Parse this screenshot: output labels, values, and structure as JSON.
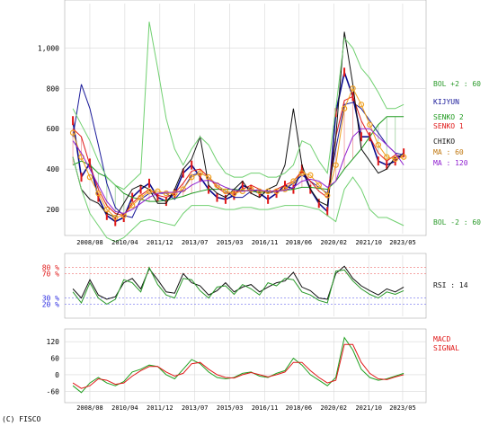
{
  "copyright": "(C) FISCO",
  "chart_data": [
    {
      "type": "line",
      "panel": "price",
      "x_tick_labels": [
        "2008/08",
        "2010/04",
        "2011/12",
        "2013/07",
        "2015/03",
        "2016/11",
        "2018/06",
        "2020/02",
        "2021/10",
        "2023/05"
      ],
      "y_tick_labels": [
        "200",
        "400",
        "600",
        "800",
        "1,000"
      ],
      "ylim": [
        80,
        1220
      ],
      "grid": true,
      "x": [
        2007.8,
        2008.2,
        2008.6,
        2009.0,
        2009.4,
        2009.8,
        2010.2,
        2010.6,
        2011.0,
        2011.4,
        2011.8,
        2012.2,
        2012.6,
        2013.0,
        2013.4,
        2013.8,
        2014.2,
        2014.6,
        2015.0,
        2015.4,
        2015.8,
        2016.2,
        2016.6,
        2017.0,
        2017.4,
        2017.8,
        2018.2,
        2018.6,
        2019.0,
        2019.4,
        2019.8,
        2020.2,
        2020.6,
        2021.0,
        2021.4,
        2021.8,
        2022.2,
        2022.6,
        2023.0,
        2023.4
      ],
      "series": [
        {
          "name": "",
          "role": "price",
          "color": "#0a0a8c",
          "values": [
            640,
            360,
            430,
            260,
            170,
            140,
            160,
            260,
            300,
            330,
            260,
            240,
            280,
            380,
            420,
            360,
            300,
            260,
            250,
            270,
            320,
            300,
            280,
            250,
            280,
            320,
            300,
            400,
            300,
            230,
            190,
            680,
            880,
            760,
            560,
            560,
            440,
            420,
            440,
            480
          ]
        },
        {
          "name": "KIJYUN",
          "color": "#1a1a9a",
          "values": [
            560,
            820,
            700,
            520,
            330,
            210,
            170,
            160,
            250,
            280,
            280,
            280,
            250,
            300,
            370,
            380,
            360,
            320,
            290,
            260,
            260,
            290,
            300,
            280,
            290,
            300,
            330,
            370,
            340,
            310,
            280,
            500,
            720,
            730,
            700,
            640,
            580,
            520,
            480,
            470
          ]
        },
        {
          "name": "SENKO 2",
          "color": "#1f9a1f",
          "values": [
            420,
            440,
            420,
            380,
            360,
            320,
            280,
            260,
            250,
            240,
            240,
            245,
            255,
            265,
            280,
            290,
            300,
            300,
            300,
            300,
            295,
            290,
            285,
            285,
            290,
            295,
            300,
            310,
            310,
            305,
            300,
            340,
            400,
            450,
            500,
            560,
            620,
            660,
            660,
            660
          ]
        },
        {
          "name": "SENKO 1",
          "color": "#e01818",
          "values": [
            600,
            560,
            420,
            300,
            220,
            180,
            170,
            230,
            270,
            300,
            270,
            260,
            280,
            330,
            390,
            400,
            360,
            310,
            280,
            280,
            300,
            320,
            300,
            280,
            300,
            320,
            340,
            390,
            340,
            290,
            260,
            560,
            740,
            760,
            640,
            560,
            480,
            440,
            470,
            460
          ]
        },
        {
          "name": "CHIKO",
          "color": "#111111",
          "values": [
            460,
            300,
            250,
            230,
            180,
            160,
            230,
            300,
            320,
            300,
            230,
            230,
            300,
            400,
            450,
            560,
            320,
            280,
            260,
            300,
            340,
            280,
            260,
            300,
            320,
            420,
            700,
            420,
            300,
            240,
            220,
            560,
            1080,
            820,
            500,
            440,
            380,
            400,
            460,
            470
          ]
        },
        {
          "name": "MA : 60",
          "color": "#f0a020",
          "values": [
            580,
            460,
            360,
            280,
            200,
            160,
            170,
            220,
            260,
            290,
            290,
            280,
            280,
            300,
            360,
            380,
            360,
            320,
            290,
            280,
            290,
            300,
            290,
            290,
            290,
            300,
            340,
            380,
            370,
            320,
            270,
            420,
            700,
            800,
            720,
            620,
            520,
            460,
            450,
            460
          ]
        },
        {
          "name": "MA : 120",
          "color": "#9020d0",
          "values": [
            540,
            480,
            400,
            320,
            240,
            190,
            180,
            200,
            230,
            260,
            280,
            285,
            285,
            290,
            320,
            340,
            345,
            330,
            310,
            295,
            290,
            295,
            295,
            290,
            290,
            295,
            310,
            340,
            350,
            340,
            310,
            340,
            460,
            560,
            600,
            600,
            560,
            520,
            480,
            420
          ]
        },
        {
          "name": "BOL +2 : 60",
          "color": "#70d070",
          "values": [
            700,
            620,
            540,
            440,
            360,
            320,
            300,
            340,
            380,
            1130,
            900,
            650,
            500,
            420,
            500,
            560,
            520,
            440,
            380,
            360,
            360,
            380,
            380,
            360,
            360,
            380,
            420,
            540,
            520,
            440,
            380,
            700,
            1050,
            1000,
            900,
            850,
            780,
            700,
            700,
            720
          ]
        },
        {
          "name": "BOL -2 : 60",
          "color": "#70d070",
          "values": [
            460,
            300,
            180,
            120,
            60,
            40,
            60,
            100,
            140,
            150,
            140,
            130,
            120,
            180,
            220,
            220,
            220,
            210,
            200,
            200,
            210,
            210,
            200,
            200,
            210,
            220,
            220,
            220,
            210,
            200,
            170,
            140,
            300,
            360,
            300,
            200,
            160,
            160,
            140,
            120
          ]
        }
      ],
      "ichimoku_cloud": {
        "upper": "SENKO 1",
        "lower": "SENKO 2"
      }
    },
    {
      "type": "line",
      "panel": "rsi",
      "title": "RSI : 14",
      "y_tick_labels": [
        "80 %",
        "70 %",
        "30 %",
        "20 %"
      ],
      "ylim": [
        0,
        100
      ],
      "reference_lines": [
        80,
        70,
        30,
        20
      ],
      "x": [
        2007.8,
        2008.2,
        2008.6,
        2009.0,
        2009.4,
        2009.8,
        2010.2,
        2010.6,
        2011.0,
        2011.4,
        2011.8,
        2012.2,
        2012.6,
        2013.0,
        2013.4,
        2013.8,
        2014.2,
        2014.6,
        2015.0,
        2015.4,
        2015.8,
        2016.2,
        2016.6,
        2017.0,
        2017.4,
        2017.8,
        2018.2,
        2018.6,
        2019.0,
        2019.4,
        2019.8,
        2020.2,
        2020.6,
        2021.0,
        2021.4,
        2021.8,
        2022.2,
        2022.6,
        2023.0,
        2023.4
      ],
      "series": [
        {
          "name": "RSI",
          "color": "#111111",
          "values": [
            45,
            30,
            60,
            35,
            28,
            32,
            55,
            62,
            45,
            78,
            60,
            40,
            38,
            70,
            55,
            50,
            35,
            42,
            55,
            40,
            48,
            52,
            40,
            48,
            55,
            58,
            72,
            48,
            42,
            30,
            28,
            70,
            82,
            62,
            50,
            42,
            35,
            45,
            40,
            48
          ]
        },
        {
          "name": "RSI (14)",
          "color": "#2a9a2a",
          "values": [
            40,
            22,
            55,
            30,
            20,
            28,
            60,
            55,
            40,
            80,
            52,
            35,
            30,
            62,
            60,
            42,
            30,
            48,
            50,
            36,
            52,
            45,
            35,
            55,
            50,
            62,
            60,
            40,
            35,
            26,
            22,
            74,
            76,
            58,
            45,
            36,
            30,
            40,
            36,
            42
          ]
        }
      ]
    },
    {
      "type": "line",
      "panel": "macd",
      "y_tick_labels": [
        "120",
        "60",
        "0",
        "-60"
      ],
      "ylim": [
        -95,
        160
      ],
      "x": [
        2007.8,
        2008.2,
        2008.6,
        2009.0,
        2009.4,
        2009.8,
        2010.2,
        2010.6,
        2011.0,
        2011.4,
        2011.8,
        2012.2,
        2012.6,
        2013.0,
        2013.4,
        2013.8,
        2014.2,
        2014.6,
        2015.0,
        2015.4,
        2015.8,
        2016.2,
        2016.6,
        2017.0,
        2017.4,
        2017.8,
        2018.2,
        2018.6,
        2019.0,
        2019.4,
        2019.8,
        2020.2,
        2020.6,
        2021.0,
        2021.4,
        2021.8,
        2022.2,
        2022.6,
        2023.0,
        2023.4
      ],
      "series": [
        {
          "name": "MACD",
          "color": "#1fa01f",
          "values": [
            -40,
            -65,
            -30,
            -10,
            -30,
            -40,
            -25,
            10,
            20,
            35,
            30,
            0,
            -15,
            20,
            55,
            40,
            10,
            -10,
            -15,
            -10,
            5,
            10,
            -5,
            -10,
            5,
            15,
            60,
            35,
            0,
            -20,
            -40,
            -10,
            135,
            90,
            20,
            -10,
            -20,
            -15,
            -5,
            5
          ]
        },
        {
          "name": "SIGNAL",
          "color": "#e01818",
          "values": [
            -30,
            -50,
            -40,
            -15,
            -20,
            -35,
            -30,
            -5,
            15,
            30,
            30,
            10,
            -5,
            5,
            40,
            45,
            20,
            0,
            -10,
            -12,
            0,
            8,
            0,
            -8,
            0,
            10,
            45,
            45,
            15,
            -10,
            -30,
            -20,
            110,
            110,
            45,
            5,
            -15,
            -18,
            -8,
            0
          ]
        }
      ]
    }
  ]
}
